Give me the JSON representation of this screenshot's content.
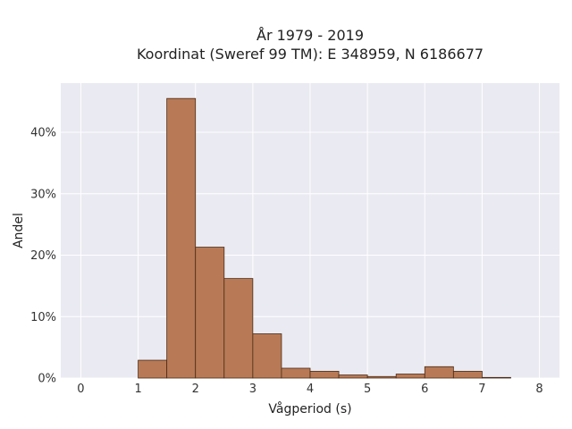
{
  "chart_data": {
    "type": "bar",
    "title_lines": [
      "År 1979 - 2019",
      "Koordinat (Sweref 99 TM): E 348959, N 6186677"
    ],
    "xlabel": "Vågperiod (s)",
    "ylabel": "Andel",
    "xlim": [
      -0.35,
      8.35
    ],
    "ylim": [
      0,
      48
    ],
    "x_ticks": [
      0,
      1,
      2,
      3,
      4,
      5,
      6,
      7,
      8
    ],
    "x_tick_labels": [
      "0",
      "1",
      "2",
      "3",
      "4",
      "5",
      "6",
      "7",
      "8"
    ],
    "y_ticks": [
      0,
      10,
      20,
      30,
      40
    ],
    "y_tick_labels": [
      "0%",
      "10%",
      "20%",
      "30%",
      "40%"
    ],
    "bin_width": 0.5,
    "bins": [
      {
        "x0": 1.0,
        "value": 2.9
      },
      {
        "x0": 1.5,
        "value": 45.5
      },
      {
        "x0": 2.0,
        "value": 21.3
      },
      {
        "x0": 2.5,
        "value": 16.2
      },
      {
        "x0": 3.0,
        "value": 7.2
      },
      {
        "x0": 3.5,
        "value": 1.6
      },
      {
        "x0": 4.0,
        "value": 1.1
      },
      {
        "x0": 4.5,
        "value": 0.5
      },
      {
        "x0": 5.0,
        "value": 0.25
      },
      {
        "x0": 5.5,
        "value": 0.65
      },
      {
        "x0": 6.0,
        "value": 1.85
      },
      {
        "x0": 6.5,
        "value": 1.1
      },
      {
        "x0": 7.0,
        "value": 0.1
      }
    ],
    "bar_color": "#b87a56",
    "bar_edge_color": "#4a2a14",
    "plot_background": "#eaeaf2",
    "grid": true,
    "grid_color": "#ffffff"
  }
}
